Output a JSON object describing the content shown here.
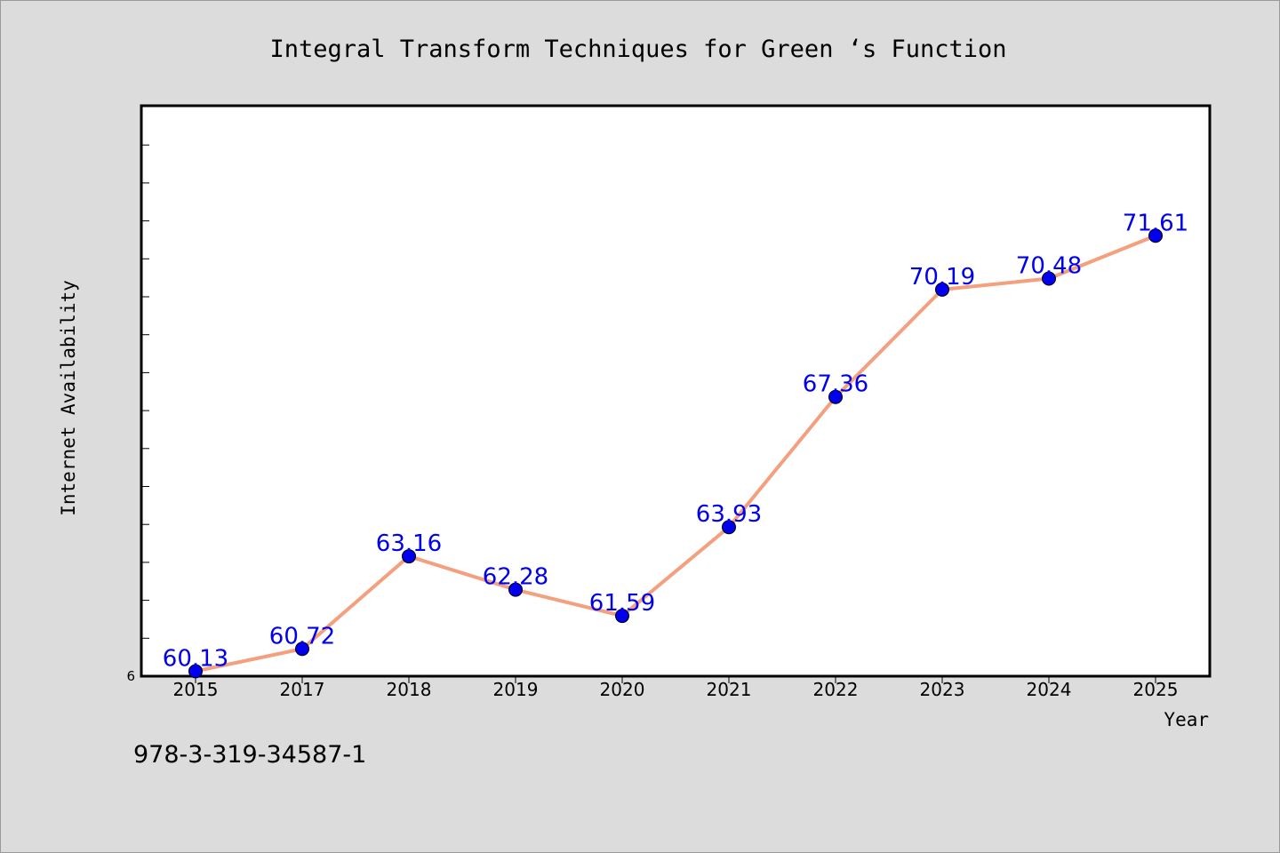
{
  "chart_data": {
    "type": "line",
    "title": "Integral Transform Techniques for Green ‘s Function",
    "xlabel": "Year",
    "ylabel": "Internet Availability",
    "categories": [
      "2015",
      "2017",
      "2018",
      "2019",
      "2020",
      "2021",
      "2022",
      "2023",
      "2024",
      "2025"
    ],
    "series": [
      {
        "values": [
          60.13,
          60.72,
          63.16,
          62.28,
          61.59,
          63.93,
          67.36,
          70.19,
          70.48,
          71.61
        ],
        "labels": [
          "60.13",
          "60.72",
          "63.16",
          "62.28",
          "61.59",
          "63.93",
          "67.36",
          "70.19",
          "70.48",
          "71.61"
        ]
      }
    ],
    "ylim": [
      60,
      75
    ],
    "y_visible_tick_label": "6",
    "line_color": "#f4a07f",
    "marker_color": "#0000ee",
    "label_color": "#0000ee",
    "grid": false,
    "legend": "none"
  },
  "footer": {
    "isbn": "978-3-319-34587-1"
  }
}
